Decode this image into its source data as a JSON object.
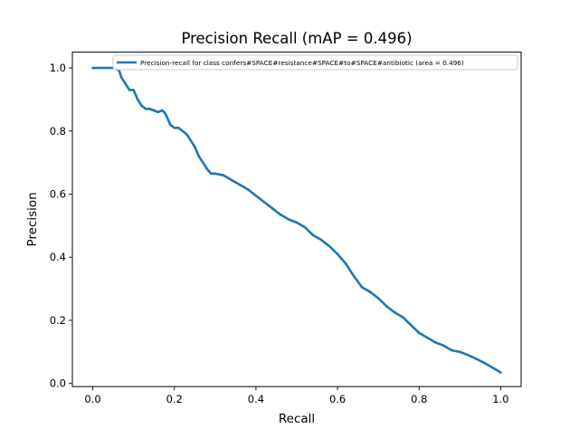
{
  "chart_data": {
    "type": "line",
    "title": "Precision Recall (mAP = 0.496)",
    "xlabel": "Recall",
    "ylabel": "Precision",
    "xlim": [
      -0.05,
      1.05
    ],
    "ylim": [
      -0.01,
      1.05
    ],
    "xticks": [
      0.0,
      0.2,
      0.4,
      0.6,
      0.8,
      1.0
    ],
    "xtick_labels": [
      "0.0",
      "0.2",
      "0.4",
      "0.6",
      "0.8",
      "1.0"
    ],
    "yticks": [
      0.0,
      0.2,
      0.4,
      0.6,
      0.8,
      1.0
    ],
    "ytick_labels": [
      "0.0",
      "0.2",
      "0.4",
      "0.6",
      "0.8",
      "1.0"
    ],
    "grid": false,
    "legend_position": "top-right",
    "series": [
      {
        "name": "Precision-recall for class confers#SPACE#resistance#SPACE#to#SPACE#antibiotic (area = 0.496)",
        "color": "#1f77b4",
        "x": [
          0.0,
          0.055,
          0.065,
          0.07,
          0.075,
          0.08,
          0.085,
          0.09,
          0.1,
          0.11,
          0.12,
          0.13,
          0.14,
          0.15,
          0.16,
          0.17,
          0.175,
          0.18,
          0.19,
          0.2,
          0.21,
          0.22,
          0.23,
          0.24,
          0.25,
          0.26,
          0.27,
          0.28,
          0.29,
          0.3,
          0.32,
          0.34,
          0.36,
          0.38,
          0.4,
          0.42,
          0.44,
          0.46,
          0.48,
          0.5,
          0.52,
          0.54,
          0.56,
          0.58,
          0.6,
          0.62,
          0.64,
          0.66,
          0.68,
          0.7,
          0.72,
          0.74,
          0.76,
          0.78,
          0.8,
          0.82,
          0.84,
          0.86,
          0.88,
          0.9,
          0.92,
          0.94,
          0.96,
          0.98,
          1.0
        ],
        "y": [
          1.0,
          1.0,
          0.99,
          0.97,
          0.96,
          0.95,
          0.94,
          0.93,
          0.93,
          0.9,
          0.88,
          0.87,
          0.87,
          0.865,
          0.86,
          0.865,
          0.86,
          0.85,
          0.82,
          0.81,
          0.81,
          0.8,
          0.79,
          0.77,
          0.75,
          0.72,
          0.7,
          0.68,
          0.665,
          0.665,
          0.66,
          0.645,
          0.63,
          0.615,
          0.595,
          0.575,
          0.555,
          0.535,
          0.52,
          0.51,
          0.495,
          0.47,
          0.455,
          0.435,
          0.41,
          0.38,
          0.34,
          0.305,
          0.29,
          0.27,
          0.245,
          0.225,
          0.21,
          0.185,
          0.16,
          0.145,
          0.13,
          0.12,
          0.105,
          0.1,
          0.09,
          0.078,
          0.065,
          0.05,
          0.035
        ]
      }
    ]
  }
}
